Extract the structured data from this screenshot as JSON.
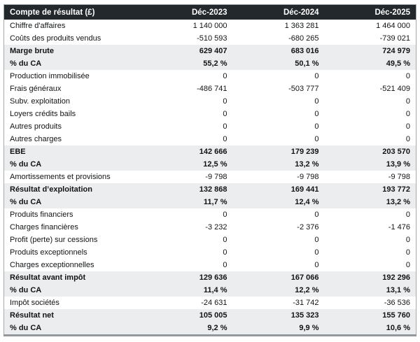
{
  "table": {
    "title": "Compte de résultat (£)",
    "columns": [
      "Déc-2023",
      "Déc-2024",
      "Déc-2025"
    ],
    "colors": {
      "header_background": "#23282d",
      "header_text": "#ffffff",
      "emphasis_row_background": "#ebedee",
      "border": "#a6abb0",
      "bottom_border": "#93989d",
      "body_text": "#111315"
    },
    "rows": [
      {
        "label": "Chiffre d'affaires",
        "values": [
          "1 140 000",
          "1 363 281",
          "1 464 000"
        ],
        "emphasis": false
      },
      {
        "label": "Coûts des produits vendus",
        "values": [
          "-510 593",
          "-680 265",
          "-739 021"
        ],
        "emphasis": false
      },
      {
        "label": "Marge brute",
        "values": [
          "629 407",
          "683 016",
          "724 979"
        ],
        "emphasis": true
      },
      {
        "label": "% du CA",
        "values": [
          "55,2 %",
          "50,1 %",
          "49,5 %"
        ],
        "emphasis": true
      },
      {
        "label": "Production immobilisée",
        "values": [
          "0",
          "0",
          "0"
        ],
        "emphasis": false
      },
      {
        "label": "Frais généraux",
        "values": [
          "-486 741",
          "-503 777",
          "-521 409"
        ],
        "emphasis": false
      },
      {
        "label": "Subv. exploitation",
        "values": [
          "0",
          "0",
          "0"
        ],
        "emphasis": false
      },
      {
        "label": "Loyers crédits bails",
        "values": [
          "0",
          "0",
          "0"
        ],
        "emphasis": false
      },
      {
        "label": "Autres produits",
        "values": [
          "0",
          "0",
          "0"
        ],
        "emphasis": false
      },
      {
        "label": "Autres charges",
        "values": [
          "0",
          "0",
          "0"
        ],
        "emphasis": false
      },
      {
        "label": "EBE",
        "values": [
          "142 666",
          "179 239",
          "203 570"
        ],
        "emphasis": true
      },
      {
        "label": "% du CA",
        "values": [
          "12,5 %",
          "13,2 %",
          "13,9 %"
        ],
        "emphasis": true
      },
      {
        "label": "Amortissements et provisions",
        "values": [
          "-9 798",
          "-9 798",
          "-9 798"
        ],
        "emphasis": false
      },
      {
        "label": "Résultat d’exploitation",
        "values": [
          "132 868",
          "169 441",
          "193 772"
        ],
        "emphasis": true
      },
      {
        "label": "% du CA",
        "values": [
          "11,7 %",
          "12,4 %",
          "13,2 %"
        ],
        "emphasis": true
      },
      {
        "label": "Produits financiers",
        "values": [
          "0",
          "0",
          "0"
        ],
        "emphasis": false
      },
      {
        "label": "Charges financières",
        "values": [
          "-3 232",
          "-2 376",
          "-1 476"
        ],
        "emphasis": false
      },
      {
        "label": "Profit (perte) sur cessions",
        "values": [
          "0",
          "0",
          "0"
        ],
        "emphasis": false
      },
      {
        "label": "Produits exceptionnels",
        "values": [
          "0",
          "0",
          "0"
        ],
        "emphasis": false
      },
      {
        "label": "Charges exceptionnelles",
        "values": [
          "0",
          "0",
          "0"
        ],
        "emphasis": false
      },
      {
        "label": "Résultat avant impôt",
        "values": [
          "129 636",
          "167 066",
          "192 296"
        ],
        "emphasis": true
      },
      {
        "label": "% du CA",
        "values": [
          "11,4 %",
          "12,2 %",
          "13,1 %"
        ],
        "emphasis": true
      },
      {
        "label": "Impôt sociétés",
        "values": [
          "-24 631",
          "-31 742",
          "-36 536"
        ],
        "emphasis": false
      },
      {
        "label": "Résultat net",
        "values": [
          "105 005",
          "135 323",
          "155 760"
        ],
        "emphasis": true
      },
      {
        "label": "% du CA",
        "values": [
          "9,2 %",
          "9,9 %",
          "10,6 %"
        ],
        "emphasis": true
      }
    ]
  }
}
